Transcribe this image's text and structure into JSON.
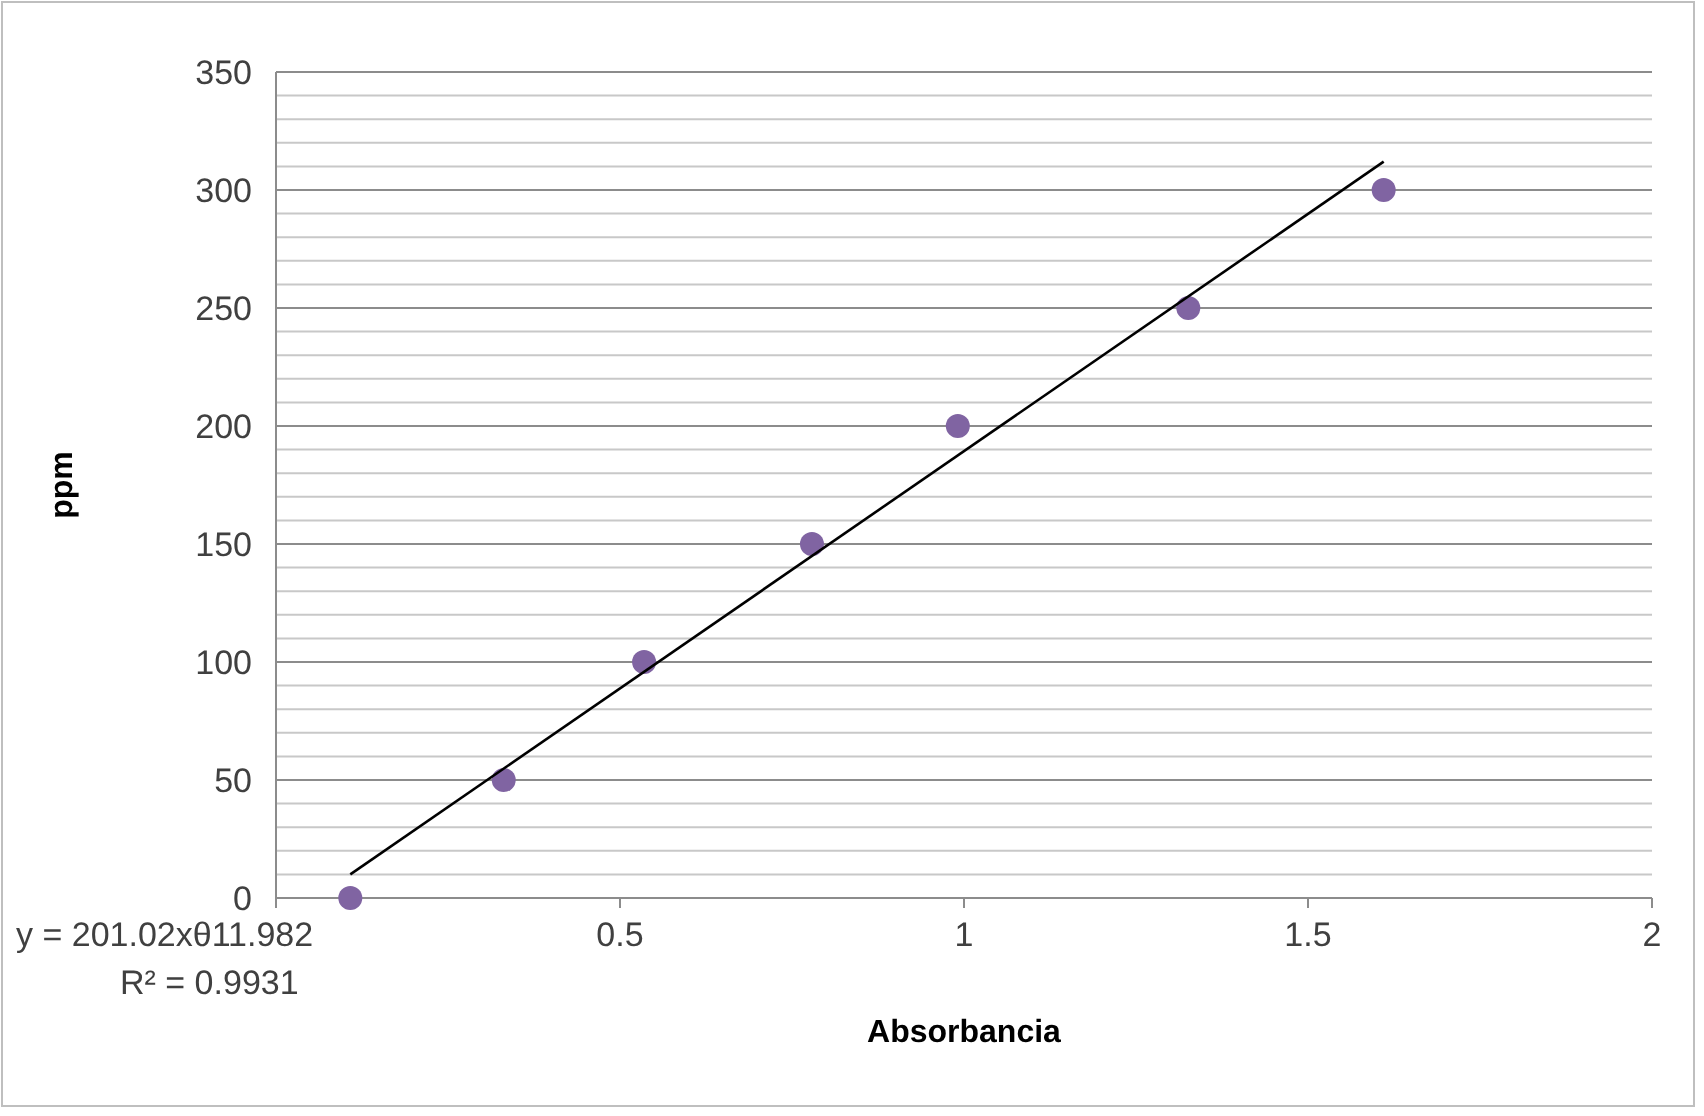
{
  "chart_data": {
    "type": "scatter",
    "xlabel": "Absorbancia",
    "ylabel": "ppm",
    "xlim": [
      0,
      2
    ],
    "xticks": [
      {
        "value": 0,
        "label": null
      },
      0.5,
      1,
      1.5,
      2
    ],
    "ylim": [
      0,
      350
    ],
    "yticks": [
      0,
      {
        "value": 10,
        "label": null
      },
      {
        "value": 20,
        "label": null
      },
      {
        "value": 30,
        "label": null
      },
      {
        "value": 40,
        "label": null
      },
      50,
      {
        "value": 60,
        "label": null
      },
      {
        "value": 70,
        "label": null
      },
      {
        "value": 80,
        "label": null
      },
      {
        "value": 90,
        "label": null
      },
      100,
      {
        "value": 110,
        "label": null
      },
      {
        "value": 120,
        "label": null
      },
      {
        "value": 130,
        "label": null
      },
      {
        "value": 140,
        "label": null
      },
      150,
      {
        "value": 160,
        "label": null
      },
      {
        "value": 170,
        "label": null
      },
      {
        "value": 180,
        "label": null
      },
      {
        "value": 190,
        "label": null
      },
      200,
      {
        "value": 210,
        "label": null
      },
      {
        "value": 220,
        "label": null
      },
      {
        "value": 230,
        "label": null
      },
      {
        "value": 240,
        "label": null
      },
      250,
      {
        "value": 260,
        "label": null
      },
      {
        "value": 270,
        "label": null
      },
      {
        "value": 280,
        "label": null
      },
      {
        "value": 290,
        "label": null
      },
      300,
      {
        "value": 310,
        "label": null
      },
      {
        "value": 320,
        "label": null
      },
      {
        "value": 330,
        "label": null
      },
      {
        "value": 340,
        "label": null
      },
      350
    ],
    "grid": "y",
    "marker": "circle",
    "series": [
      {
        "color": "#8064a2",
        "x": [
          0.108,
          0.331,
          0.535,
          0.779,
          0.991,
          1.326,
          1.61
        ],
        "values": [
          0,
          50,
          100,
          150,
          200,
          250,
          300
        ]
      },
      {
        "type": "line",
        "color": "#000000",
        "marker": "none",
        "line_style": "solid",
        "x": [
          0.108,
          1.61
        ],
        "values": [
          10,
          312
        ]
      }
    ],
    "annotations": [
      "y = 201.02xθ11.982",
      "R² = 0.9931"
    ]
  }
}
